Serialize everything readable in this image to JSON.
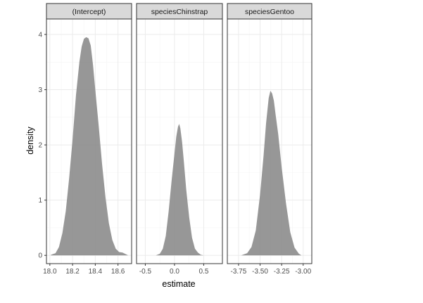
{
  "chart_data": {
    "type": "area",
    "facet": "density estimates per model term",
    "xlabel": "estimate",
    "ylabel": "density",
    "ylim": [
      -0.15,
      4.28
    ],
    "y_ticks": [
      0,
      1,
      2,
      3,
      4
    ],
    "y_tick_labels": [
      "0",
      "1",
      "2",
      "3",
      "4"
    ],
    "fill_color": "#8c8c8c",
    "strip_color": "#d9d9d9",
    "grid": true,
    "panels": [
      {
        "name": "(Intercept)",
        "xlim": [
          17.97,
          18.72
        ],
        "x_ticks": [
          18.0,
          18.2,
          18.4,
          18.6
        ],
        "x_tick_labels": [
          "18.0",
          "18.2",
          "18.4",
          "18.6"
        ],
        "x": [
          18.01,
          18.05,
          18.08,
          18.11,
          18.14,
          18.17,
          18.2,
          18.23,
          18.26,
          18.28,
          18.3,
          18.32,
          18.34,
          18.36,
          18.38,
          18.4,
          18.43,
          18.46,
          18.49,
          18.52,
          18.55,
          18.58,
          18.61,
          18.64,
          18.67,
          18.69
        ],
        "y": [
          0.01,
          0.04,
          0.15,
          0.4,
          0.8,
          1.4,
          2.1,
          2.9,
          3.5,
          3.78,
          3.92,
          3.95,
          3.93,
          3.8,
          3.45,
          3.0,
          2.35,
          1.65,
          1.05,
          0.58,
          0.28,
          0.12,
          0.06,
          0.05,
          0.02,
          0.0
        ]
      },
      {
        "name": "speciesChinstrap",
        "xlim": [
          -0.65,
          0.82
        ],
        "x_ticks": [
          -0.5,
          0.0,
          0.5
        ],
        "x_tick_labels": [
          "-0.5",
          "0.0",
          "0.5"
        ],
        "x": [
          -0.32,
          -0.25,
          -0.2,
          -0.15,
          -0.1,
          -0.05,
          0.0,
          0.03,
          0.06,
          0.08,
          0.1,
          0.13,
          0.16,
          0.2,
          0.25,
          0.3,
          0.35,
          0.4,
          0.45,
          0.5
        ],
        "y": [
          0.0,
          0.03,
          0.12,
          0.35,
          0.8,
          1.35,
          1.85,
          2.15,
          2.33,
          2.38,
          2.3,
          2.05,
          1.7,
          1.2,
          0.7,
          0.32,
          0.12,
          0.05,
          0.01,
          0.0
        ]
      },
      {
        "name": "speciesGentoo",
        "xlim": [
          -3.88,
          -2.9
        ],
        "x_ticks": [
          -3.75,
          -3.5,
          -3.25,
          -3.0
        ],
        "x_tick_labels": [
          "-3.75",
          "-3.50",
          "-3.25",
          "-3.00"
        ],
        "x": [
          -3.72,
          -3.65,
          -3.6,
          -3.55,
          -3.5,
          -3.46,
          -3.43,
          -3.4,
          -3.38,
          -3.36,
          -3.34,
          -3.32,
          -3.29,
          -3.25,
          -3.2,
          -3.15,
          -3.1,
          -3.05,
          -3.02
        ],
        "y": [
          0.0,
          0.04,
          0.15,
          0.45,
          1.1,
          1.8,
          2.4,
          2.85,
          2.98,
          2.93,
          2.8,
          2.55,
          2.2,
          1.6,
          0.95,
          0.42,
          0.14,
          0.03,
          0.0
        ]
      }
    ]
  }
}
